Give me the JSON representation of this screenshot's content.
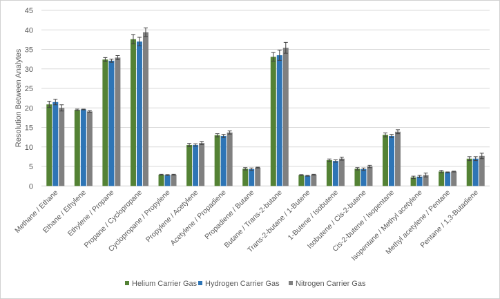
{
  "chart_data": {
    "type": "bar",
    "title": "",
    "xlabel": "",
    "ylabel": "Resolution Between Analytes",
    "ylim": [
      0,
      45
    ],
    "yticks": [
      0,
      5,
      10,
      15,
      20,
      25,
      30,
      35,
      40,
      45
    ],
    "grid": true,
    "legend_position": "bottom",
    "error_bars": true,
    "categories": [
      "Methane / Ethane",
      "Ethane / Ethylene",
      "Ethylene / Propane",
      "Propane / Cyclopropane",
      "Cyclopropane / Propylene",
      "Propylene / Acetylene",
      "Acetylene / Propadiene",
      "Propadiene / Butane",
      "Butane / Trans-2-butane",
      "Trans-2-butane / 1-Butene",
      "1-Butene / Isobutene",
      "Isobutene / Cis-2-butene",
      "Cis-2-butene / Isopentane",
      "Isopentane / Methyl acetylene",
      "Methyl acetylene / Pentane",
      "Pentane / 1,3-Butadiene"
    ],
    "series": [
      {
        "name": "Helium Carrier Gas",
        "color": "#548235",
        "values": [
          20.9,
          19.5,
          32.4,
          37.6,
          2.9,
          10.5,
          13.0,
          4.4,
          33.1,
          2.8,
          6.6,
          4.4,
          13.1,
          2.2,
          3.7,
          7.0
        ],
        "errors": [
          0.8,
          0.2,
          0.5,
          1.2,
          0.1,
          0.4,
          0.4,
          0.3,
          1.1,
          0.1,
          0.3,
          0.3,
          0.5,
          0.3,
          0.3,
          0.5
        ]
      },
      {
        "name": "Hydrogen Carrier Gas",
        "color": "#2E75B6",
        "values": [
          21.5,
          19.6,
          32.1,
          37.0,
          2.8,
          10.5,
          12.8,
          4.3,
          33.5,
          2.6,
          6.4,
          4.3,
          12.8,
          2.4,
          3.5,
          7.0
        ],
        "errors": [
          0.7,
          0.1,
          0.4,
          1.1,
          0.1,
          0.3,
          0.4,
          0.3,
          1.3,
          0.1,
          0.3,
          0.3,
          0.4,
          0.3,
          0.1,
          0.5
        ]
      },
      {
        "name": "Nitrogen Carrier Gas",
        "color": "#808080",
        "values": [
          20.0,
          19.1,
          32.9,
          39.4,
          2.9,
          11.0,
          13.7,
          4.7,
          35.4,
          2.9,
          7.0,
          5.0,
          13.9,
          2.8,
          3.7,
          7.7
        ],
        "errors": [
          0.8,
          0.2,
          0.5,
          1.1,
          0.1,
          0.4,
          0.4,
          0.1,
          1.4,
          0.1,
          0.4,
          0.3,
          0.5,
          0.5,
          0.1,
          0.7
        ]
      }
    ]
  }
}
